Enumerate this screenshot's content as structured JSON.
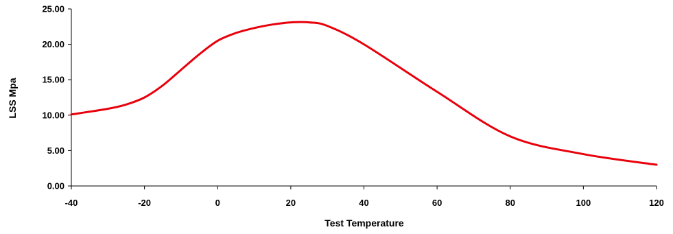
{
  "chart_data": {
    "type": "line",
    "title": "",
    "xlabel": "Test Temperature",
    "ylabel": "LSS Mpa",
    "xlim": [
      -40,
      120
    ],
    "ylim": [
      0,
      25
    ],
    "x_ticks": [
      -40,
      -20,
      0,
      20,
      40,
      60,
      80,
      100,
      120
    ],
    "x_tick_labels": [
      "-40",
      "-20",
      "0",
      "20",
      "40",
      "60",
      "80",
      "100",
      "120"
    ],
    "y_ticks": [
      0,
      5,
      10,
      15,
      20,
      25
    ],
    "y_tick_labels": [
      "0.00",
      "5.00",
      "10.00",
      "15.00",
      "20.00",
      "25.00"
    ],
    "grid": false,
    "legend": "none",
    "series": [
      {
        "color": "#e8000b",
        "x": [
          -40,
          -30,
          -25,
          -20,
          -15,
          -10,
          -5,
          0,
          5,
          10,
          15,
          20,
          25,
          30,
          40,
          60,
          80,
          100,
          120
        ],
        "y": [
          10.1,
          10.9,
          11.5,
          12.5,
          14.2,
          16.4,
          18.6,
          20.5,
          21.6,
          22.3,
          22.8,
          23.1,
          23.1,
          22.6,
          20.0,
          13.3,
          7.0,
          4.5,
          3.0
        ]
      }
    ]
  }
}
